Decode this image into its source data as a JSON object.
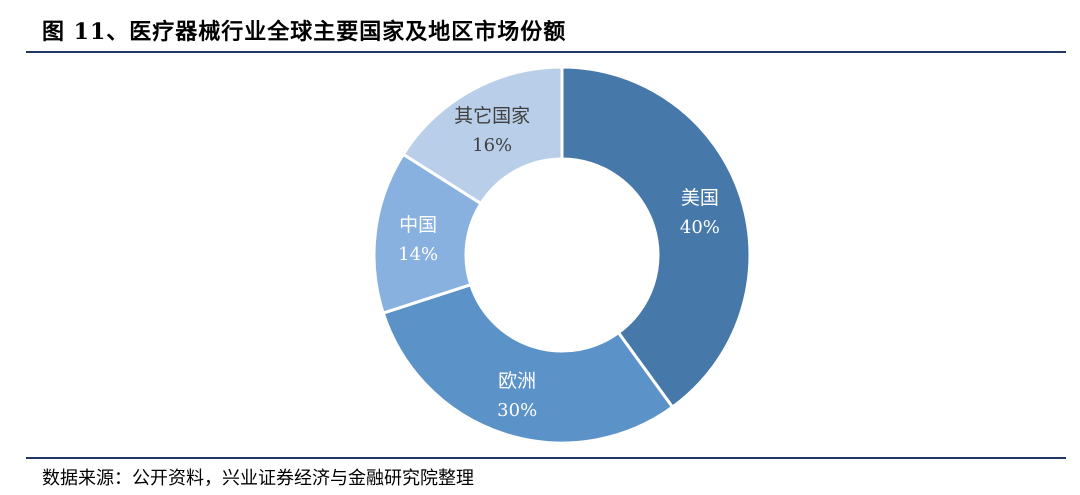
{
  "figure": {
    "title": "图 11、医疗器械行业全球主要国家及地区市场份额",
    "source": "数据来源：公开资料，兴业证券经济与金融研究院整理"
  },
  "chart_data": {
    "type": "pie",
    "variant": "donut",
    "title": "",
    "slices": [
      {
        "label": "美国",
        "value": 40,
        "value_label": "40%",
        "color": "#4778aa"
      },
      {
        "label": "欧洲",
        "value": 30,
        "value_label": "30%",
        "color": "#5b92c8"
      },
      {
        "label": "中国",
        "value": 14,
        "value_label": "14%",
        "color": "#88b1df"
      },
      {
        "label": "其它国家",
        "value": 16,
        "value_label": "16%",
        "color": "#b9cfe9"
      }
    ],
    "start_angle": "12 o'clock",
    "direction": "clockwise",
    "legend": "none",
    "label_color": "#ffffff",
    "label_color_light_slice": "#404040"
  }
}
